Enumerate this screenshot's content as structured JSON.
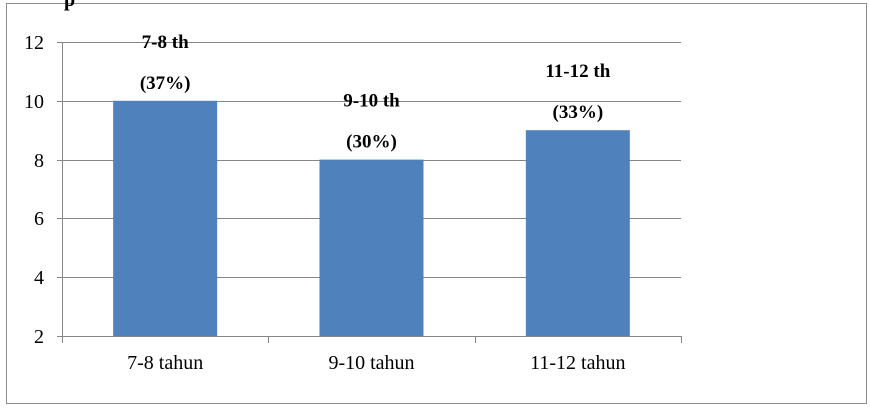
{
  "header_fragment": "p",
  "chart_data": {
    "type": "bar",
    "categories": [
      "7-8 tahun",
      "9-10 tahun",
      "11-12 tahun"
    ],
    "values": [
      10,
      8,
      9
    ],
    "data_labels": [
      {
        "line1": "7-8 th",
        "line2": "(37%)"
      },
      {
        "line1": "9-10 th",
        "line2": "(30%)"
      },
      {
        "line1": "11-12 th",
        "line2": "(33%)"
      }
    ],
    "yticks": [
      2,
      4,
      6,
      8,
      10,
      12
    ],
    "ylim": [
      2,
      12
    ],
    "grid": true,
    "title": "",
    "xlabel": "",
    "ylabel": "",
    "colors": {
      "bar": "#4F81BD",
      "grid": "#868686",
      "axis": "#868686",
      "frame": "#8c8c8c"
    }
  }
}
